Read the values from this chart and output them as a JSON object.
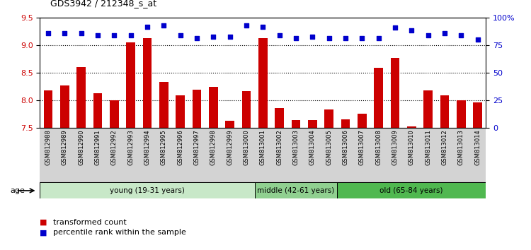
{
  "title": "GDS3942 / 212348_s_at",
  "samples": [
    "GSM812988",
    "GSM812989",
    "GSM812990",
    "GSM812991",
    "GSM812992",
    "GSM812993",
    "GSM812994",
    "GSM812995",
    "GSM812996",
    "GSM812997",
    "GSM812998",
    "GSM812999",
    "GSM813000",
    "GSM813001",
    "GSM813002",
    "GSM813003",
    "GSM813004",
    "GSM813005",
    "GSM813006",
    "GSM813007",
    "GSM813008",
    "GSM813009",
    "GSM813010",
    "GSM813011",
    "GSM813012",
    "GSM813013",
    "GSM813014"
  ],
  "bar_values": [
    8.18,
    8.27,
    8.6,
    8.12,
    8.0,
    9.05,
    9.12,
    8.33,
    8.08,
    8.19,
    8.24,
    7.62,
    8.16,
    9.12,
    7.85,
    7.63,
    7.63,
    7.83,
    7.65,
    7.75,
    8.58,
    8.76,
    7.52,
    8.17,
    8.09,
    8.0,
    7.95
  ],
  "scatter_values": [
    9.22,
    9.22,
    9.22,
    9.18,
    9.17,
    9.17,
    9.33,
    9.35,
    9.18,
    9.13,
    9.15,
    9.15,
    9.35,
    9.33,
    9.18,
    9.12,
    9.15,
    9.12,
    9.12,
    9.12,
    9.12,
    9.32,
    9.27,
    9.18,
    9.22,
    9.18,
    9.1
  ],
  "ylim_left": [
    7.5,
    9.5
  ],
  "ylim_right": [
    0,
    100
  ],
  "yticks_left": [
    7.5,
    8.0,
    8.5,
    9.0,
    9.5
  ],
  "yticks_right": [
    0,
    25,
    50,
    75,
    100
  ],
  "bar_color": "#cc0000",
  "scatter_color": "#0000cc",
  "tick_bg_color": "#d3d3d3",
  "groups": [
    {
      "label": "young (19-31 years)",
      "start": 0,
      "end": 13,
      "color": "#c8e8c8"
    },
    {
      "label": "middle (42-61 years)",
      "start": 13,
      "end": 18,
      "color": "#90d090"
    },
    {
      "label": "old (65-84 years)",
      "start": 18,
      "end": 27,
      "color": "#50b850"
    }
  ],
  "legend_red": "transformed count",
  "legend_blue": "percentile rank within the sample",
  "age_label": "age"
}
